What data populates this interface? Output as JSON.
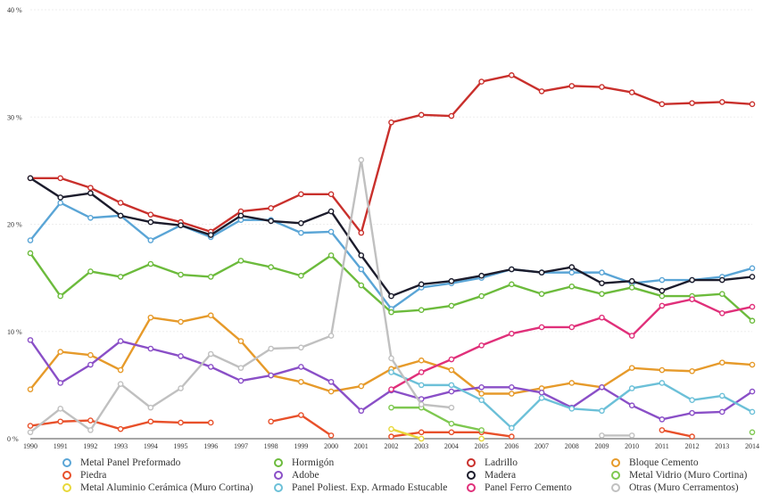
{
  "chart_data": {
    "type": "line",
    "title": "",
    "xlabel": "",
    "ylabel": "",
    "x": [
      1990,
      1991,
      1992,
      1993,
      1994,
      1995,
      1996,
      1997,
      1998,
      1999,
      2000,
      2001,
      2002,
      2003,
      2004,
      2005,
      2006,
      2007,
      2008,
      2009,
      2010,
      2011,
      2012,
      2013,
      2014
    ],
    "ylim": [
      0,
      40
    ],
    "yticks": [
      "0 %",
      "10 %",
      "20 %",
      "30 %",
      "40 %"
    ],
    "ytick_values": [
      0,
      10,
      20,
      30,
      40
    ],
    "grid": true,
    "legend_position": "bottom",
    "series": [
      {
        "name": "Metal Panel Preformado",
        "color": "#5aa5d6",
        "values": [
          18.5,
          22.0,
          20.6,
          20.8,
          18.5,
          19.9,
          18.8,
          20.4,
          20.4,
          19.2,
          19.3,
          15.8,
          12.1,
          14.1,
          14.5,
          15.0,
          15.8,
          15.5,
          15.5,
          15.5,
          14.5,
          14.8,
          14.8,
          15.1,
          15.9
        ]
      },
      {
        "name": "Hormigón",
        "color": "#6cbb3c",
        "values": [
          17.3,
          13.3,
          15.6,
          15.1,
          16.3,
          15.3,
          15.1,
          16.6,
          16.0,
          15.2,
          17.1,
          14.3,
          11.8,
          12.0,
          12.4,
          13.3,
          14.4,
          13.5,
          14.2,
          13.5,
          14.1,
          13.3,
          13.3,
          13.5,
          11.0
        ]
      },
      {
        "name": "Ladrillo",
        "color": "#c9302c",
        "values": [
          24.3,
          24.3,
          23.4,
          22.0,
          20.9,
          20.2,
          19.3,
          21.2,
          21.5,
          22.8,
          22.8,
          19.2,
          29.5,
          30.2,
          30.1,
          33.3,
          33.9,
          32.4,
          32.9,
          32.8,
          32.3,
          31.2,
          31.3,
          31.4,
          31.2
        ]
      },
      {
        "name": "Bloque Cemento",
        "color": "#e69a2a",
        "values": [
          4.6,
          8.1,
          7.8,
          6.4,
          11.3,
          10.9,
          11.5,
          9.1,
          5.9,
          5.3,
          4.4,
          4.9,
          6.5,
          7.3,
          6.4,
          4.2,
          4.2,
          4.7,
          5.2,
          4.8,
          6.6,
          6.4,
          6.3,
          7.1,
          6.9
        ]
      },
      {
        "name": "Piedra",
        "color": "#e8502a",
        "values": [
          1.2,
          1.6,
          1.7,
          0.9,
          1.6,
          1.5,
          1.5,
          null,
          1.6,
          2.2,
          0.3,
          null,
          0.2,
          0.6,
          0.6,
          0.6,
          0.2,
          null,
          null,
          null,
          null,
          0.8,
          0.2,
          null,
          null
        ]
      },
      {
        "name": "Adobe",
        "color": "#8a4fc7",
        "values": [
          9.2,
          5.2,
          6.9,
          9.1,
          8.4,
          7.7,
          6.7,
          5.4,
          5.9,
          6.7,
          5.3,
          2.6,
          4.5,
          3.7,
          4.4,
          4.8,
          4.8,
          4.3,
          2.9,
          4.8,
          3.1,
          1.8,
          2.4,
          2.5,
          4.4
        ]
      },
      {
        "name": "Madera",
        "color": "#1c1c2c",
        "values": [
          24.3,
          22.5,
          22.9,
          20.8,
          20.2,
          19.9,
          19.0,
          20.8,
          20.3,
          20.1,
          21.2,
          17.1,
          13.3,
          14.4,
          14.7,
          15.2,
          15.8,
          15.5,
          16.0,
          14.5,
          14.7,
          13.8,
          14.8,
          14.8,
          15.1
        ]
      },
      {
        "name": "Metal Vidrio (Muro Cortina)",
        "color": "#7ec850",
        "values": [
          null,
          null,
          null,
          null,
          null,
          null,
          null,
          null,
          null,
          null,
          null,
          null,
          2.9,
          2.9,
          1.4,
          0.8,
          null,
          null,
          null,
          null,
          null,
          null,
          null,
          null,
          0.6
        ]
      },
      {
        "name": "Metal Aluminio Cerámica (Muro Cortina)",
        "color": "#e8d83a",
        "values": [
          null,
          null,
          null,
          null,
          null,
          null,
          null,
          null,
          null,
          null,
          null,
          null,
          0.9,
          0.0,
          null,
          0.0,
          null,
          null,
          null,
          null,
          null,
          null,
          null,
          null,
          null
        ]
      },
      {
        "name": "Panel Poliest. Exp. Armado Estucable",
        "color": "#6cc0d8",
        "values": [
          null,
          null,
          null,
          null,
          null,
          null,
          null,
          null,
          null,
          null,
          null,
          null,
          6.2,
          5.0,
          5.0,
          3.6,
          1.0,
          3.8,
          2.8,
          2.6,
          4.7,
          5.2,
          3.6,
          4.0,
          2.5
        ]
      },
      {
        "name": "Panel Ferro Cemento",
        "color": "#e0307a",
        "values": [
          null,
          null,
          null,
          null,
          null,
          null,
          null,
          null,
          null,
          null,
          null,
          null,
          4.6,
          6.2,
          7.4,
          8.7,
          9.8,
          10.4,
          10.4,
          11.3,
          9.6,
          12.4,
          13.0,
          11.7,
          12.3
        ]
      },
      {
        "name": "Otras (Muro Cerramentos)",
        "color": "#c0c0c0",
        "values": [
          0.6,
          2.8,
          0.8,
          5.1,
          2.9,
          4.7,
          7.9,
          6.6,
          8.4,
          8.5,
          9.6,
          26.0,
          7.5,
          3.2,
          2.9,
          null,
          null,
          null,
          null,
          0.3,
          0.3,
          null,
          null,
          null,
          null
        ]
      }
    ]
  }
}
